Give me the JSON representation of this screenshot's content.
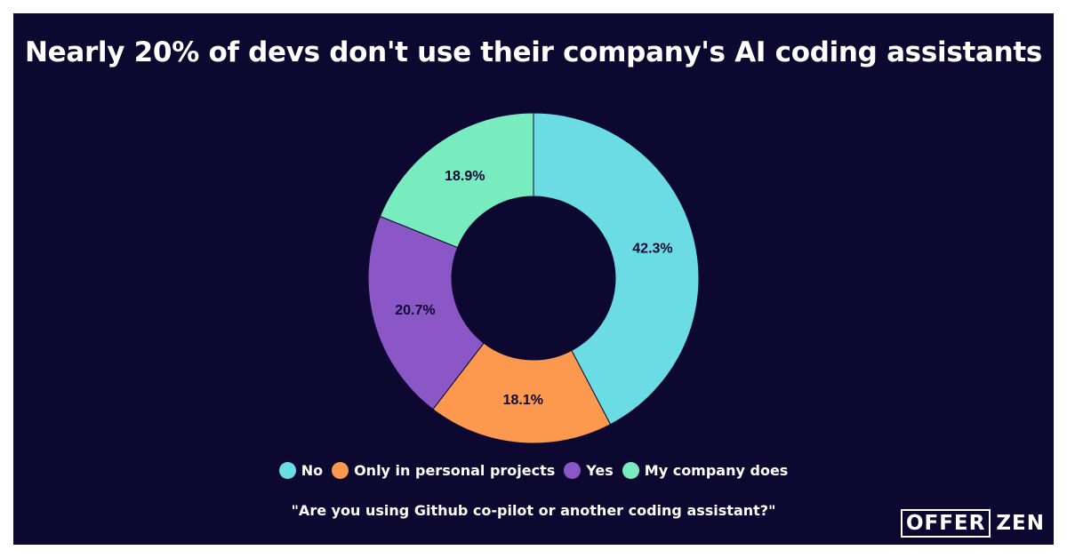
{
  "title": "Nearly 20% of devs don't use their company's AI coding assistants",
  "question": "\"Are you using Github co-pilot or another coding assistant?\"",
  "logo": {
    "boxed": "OFFER",
    "plain": "ZEN"
  },
  "colors": {
    "background": "#0c0830",
    "No": "#6cdce4",
    "Only in personal projects": "#fd984f",
    "Yes": "#8b56c6",
    "My company does": "#78ecbf"
  },
  "chart_data": {
    "type": "pie",
    "donut": true,
    "start": "top, clockwise",
    "categories": [
      "No",
      "Only in personal projects",
      "Yes",
      "My company does"
    ],
    "values": [
      42.3,
      18.1,
      20.7,
      18.9
    ],
    "labels": [
      "42.3%",
      "18.1%",
      "20.7%",
      "18.9%"
    ],
    "legend_position": "bottom"
  }
}
